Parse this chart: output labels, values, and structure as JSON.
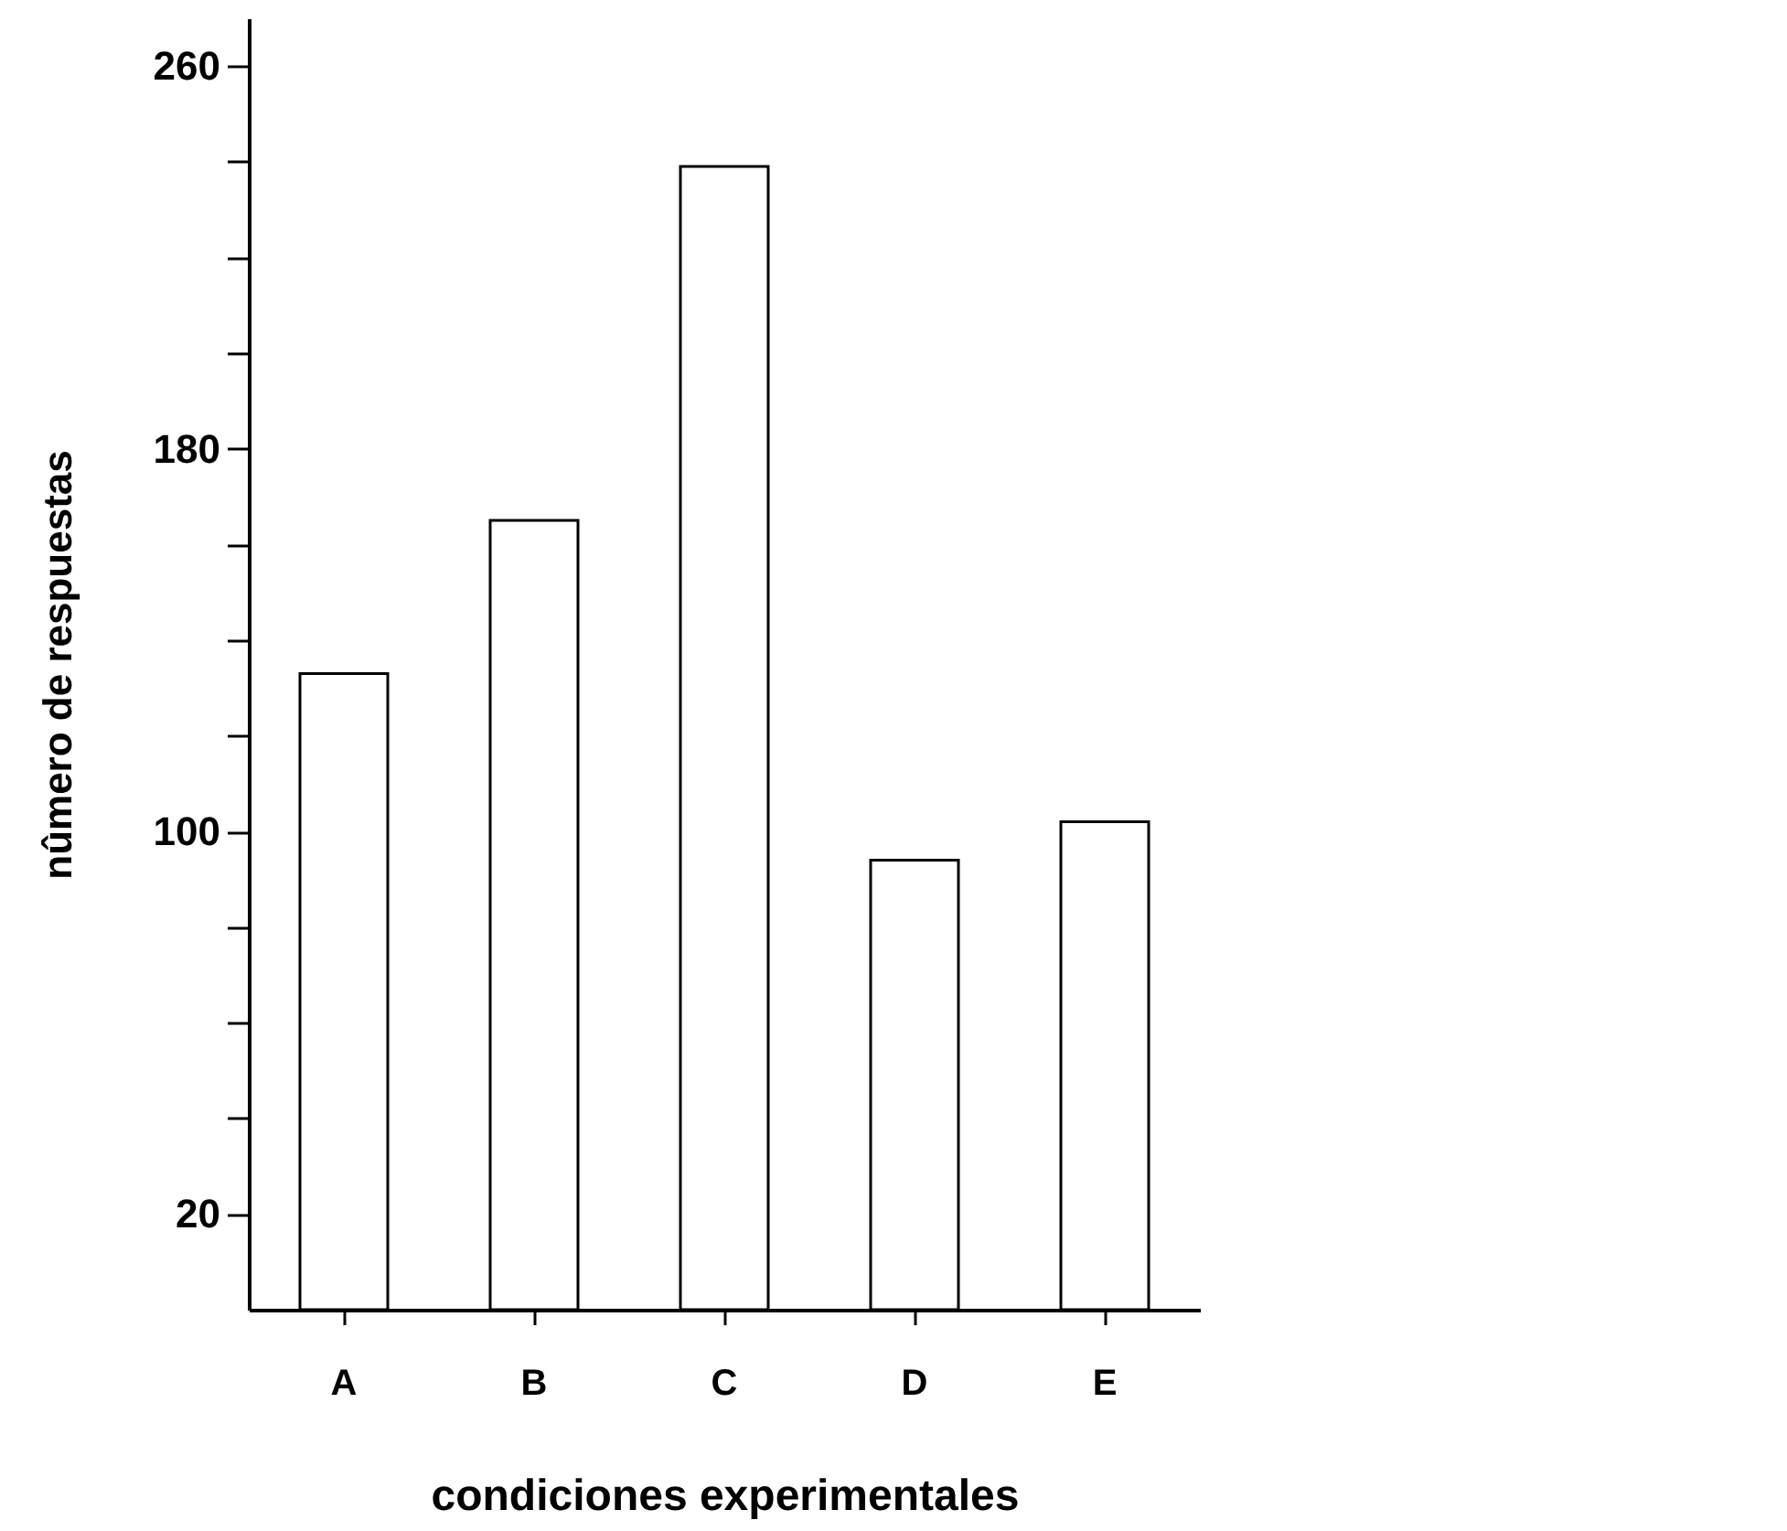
{
  "chart_data": {
    "type": "bar",
    "xlabel": "condiciones experimentales",
    "ylabel": "nûmero de respuestas",
    "categories": [
      "A",
      "B",
      "C",
      "D",
      "E"
    ],
    "values": [
      133,
      165,
      239,
      94,
      102
    ],
    "color": "#ffffff",
    "ylim": [
      0,
      270
    ],
    "yticks": [
      {
        "value": 20,
        "label": "20"
      },
      {
        "value": 40,
        "label": null
      },
      {
        "value": 60,
        "label": null
      },
      {
        "value": 80,
        "label": null
      },
      {
        "value": 100,
        "label": "100"
      },
      {
        "value": 120,
        "label": null
      },
      {
        "value": 140,
        "label": null
      },
      {
        "value": 160,
        "label": null
      },
      {
        "value": 180,
        "label": "180"
      },
      {
        "value": 200,
        "label": null
      },
      {
        "value": 220,
        "label": null
      },
      {
        "value": 240,
        "label": null
      },
      {
        "value": 260,
        "label": "260"
      }
    ],
    "grid": false
  }
}
